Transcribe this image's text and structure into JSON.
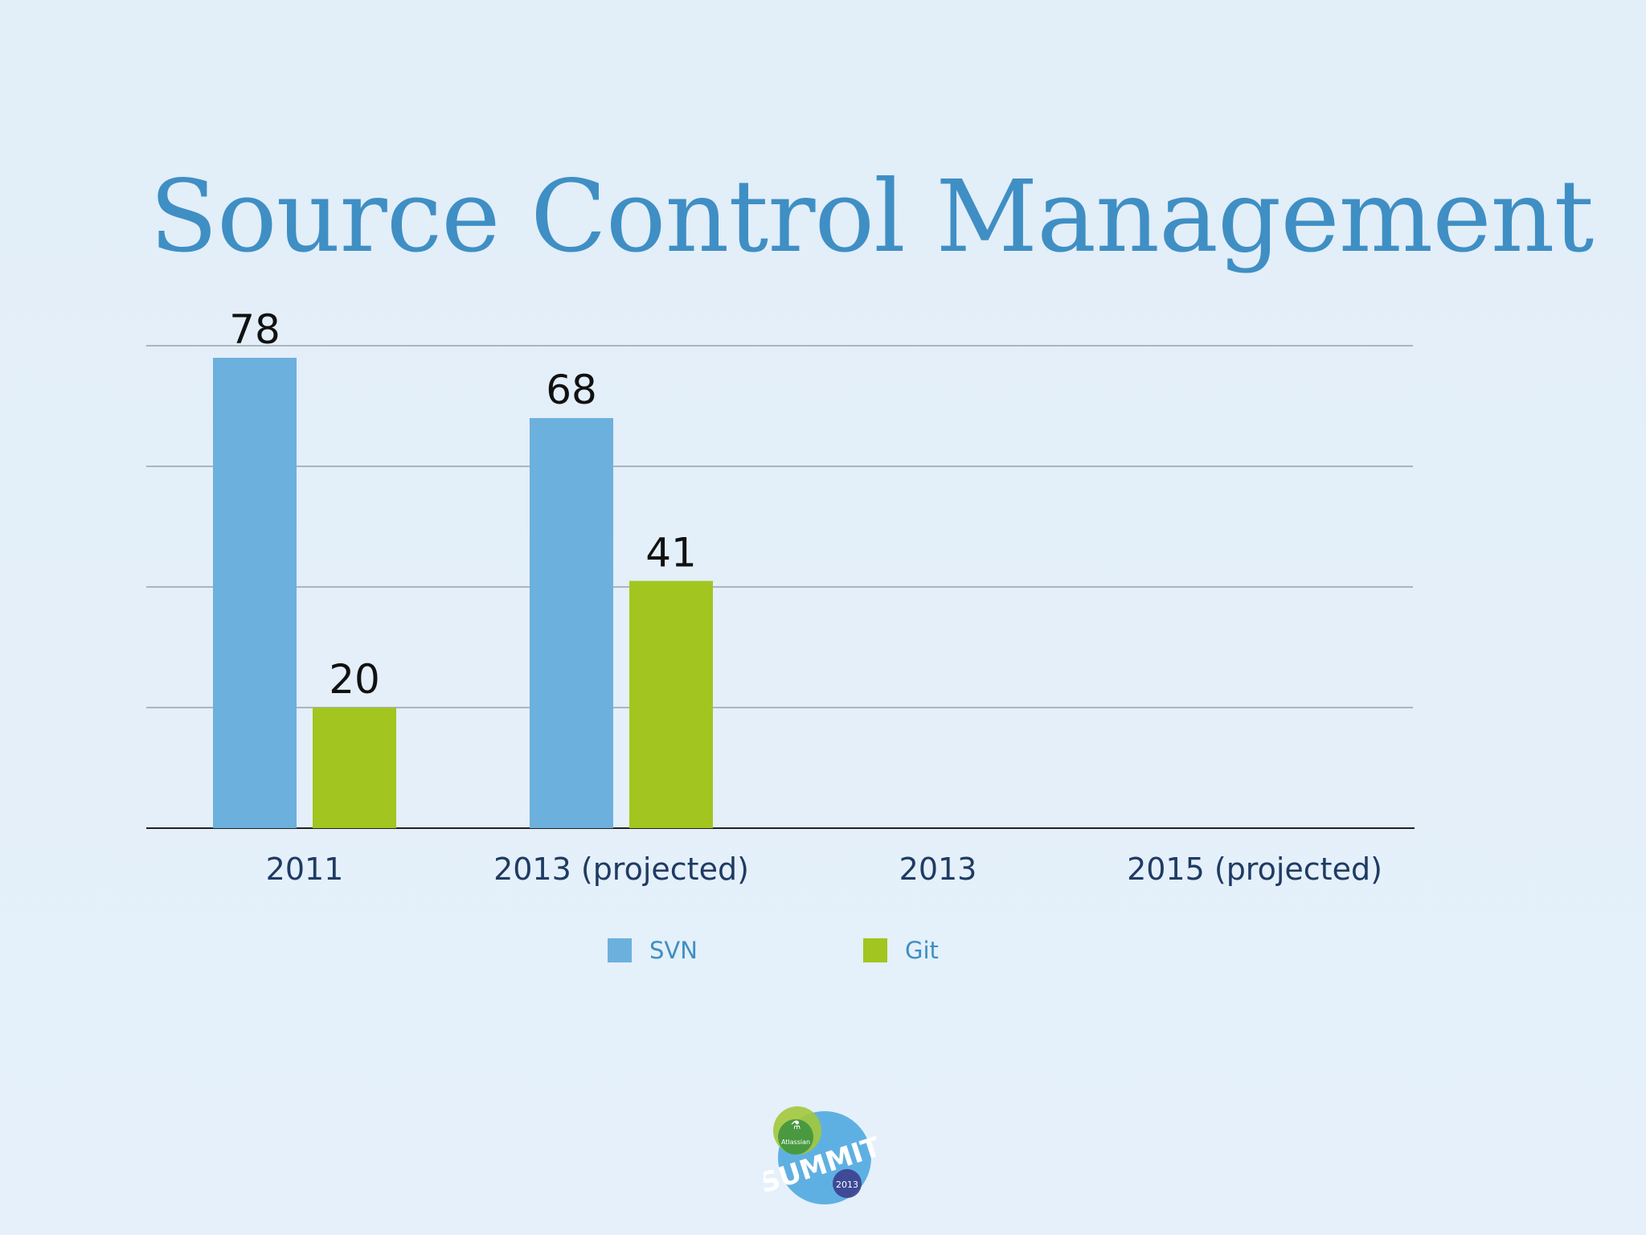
{
  "slide": {
    "title": "Source Control Management"
  },
  "colors": {
    "background": "#e4eff9",
    "title": "#3f8fc4",
    "svn": "#6cb0dd",
    "git": "#a2c520",
    "grid": "#9aa2ab",
    "axis": "#222222",
    "tick_label": "#1f3b63",
    "value_label": "#111111",
    "legend_text": "#3e8fc2"
  },
  "chart_data": {
    "type": "bar",
    "title": "Source Control Management",
    "categories": [
      "2011",
      "2013 (projected)",
      "2013",
      "2015 (projected)"
    ],
    "series": [
      {
        "name": "SVN",
        "values": [
          78,
          68,
          null,
          null
        ]
      },
      {
        "name": "Git",
        "values": [
          20,
          41,
          null,
          null
        ]
      }
    ],
    "ylim": [
      0,
      80
    ],
    "grid": true,
    "legend": "bottom",
    "data_labels": true
  },
  "logo": {
    "text_main": "SUMMIT",
    "text_brand": "Atlassian",
    "text_year": "2013"
  }
}
